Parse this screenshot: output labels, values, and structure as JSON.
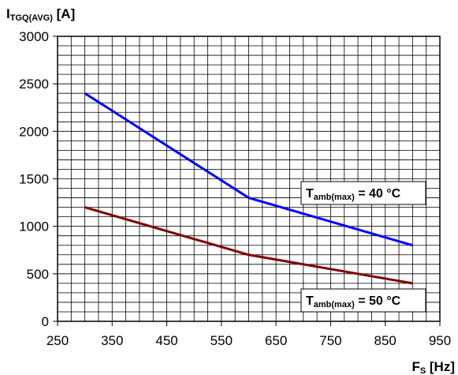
{
  "chart_data": {
    "type": "line",
    "ylabel": {
      "main": "I",
      "sub": "TGQ(AVG)",
      "unit": " [A]"
    },
    "xlabel": {
      "main": "F",
      "sub": "S",
      "unit": " [Hz]"
    },
    "xlim": [
      250,
      950
    ],
    "ylim": [
      0,
      3000
    ],
    "x_ticks": [
      "250",
      "350",
      "450",
      "550",
      "650",
      "750",
      "850",
      "950"
    ],
    "y_ticks": [
      "0",
      "500",
      "1000",
      "1500",
      "2000",
      "2500",
      "3000"
    ],
    "grid": true,
    "series": [
      {
        "color": "#0000ff",
        "points": [
          [
            300,
            2400
          ],
          [
            600,
            1300
          ],
          [
            900,
            800
          ]
        ]
      },
      {
        "color": "#800000",
        "points": [
          [
            300,
            1200
          ],
          [
            600,
            700
          ],
          [
            900,
            400
          ]
        ]
      }
    ],
    "annotations": [
      {
        "main": "T",
        "sub": "amb(max)",
        "rest": " = 40 °C"
      },
      {
        "main": "T",
        "sub": "amb(max)",
        "rest": " = 50 °C"
      }
    ]
  }
}
